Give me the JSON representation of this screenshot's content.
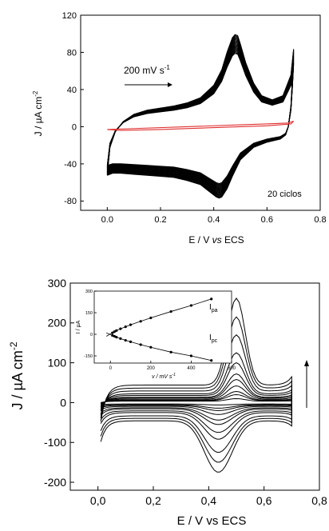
{
  "chart_data": [
    {
      "type": "line",
      "panel": "top",
      "xlabel_parts": [
        "E / V ",
        "vs",
        " ECS"
      ],
      "ylabel": "J / µA cm",
      "ylabel_sup": "-2",
      "xlim": [
        -0.1,
        0.8
      ],
      "ylim": [
        -90,
        120
      ],
      "xticks": [
        "0.0",
        "0.2",
        "0.4",
        "0.6",
        "0.8"
      ],
      "yticks": [
        "-80",
        "-40",
        "0",
        "40",
        "80",
        "120"
      ],
      "annotations": {
        "rate_text": "200 mV s",
        "rate_sup": "-1",
        "cycles_text": "20 ciclos"
      },
      "series": [
        {
          "color": "#000000",
          "cycles": 20,
          "forward": [
            [
              0.0,
              -47
            ],
            [
              0.01,
              -20
            ],
            [
              0.03,
              -5
            ],
            [
              0.06,
              5
            ],
            [
              0.1,
              12
            ],
            [
              0.15,
              16
            ],
            [
              0.2,
              18
            ],
            [
              0.25,
              20
            ],
            [
              0.3,
              23
            ],
            [
              0.35,
              28
            ],
            [
              0.4,
              40
            ],
            [
              0.43,
              55
            ],
            [
              0.45,
              72
            ],
            [
              0.47,
              86
            ],
            [
              0.48,
              89
            ],
            [
              0.49,
              88
            ],
            [
              0.5,
              80
            ],
            [
              0.52,
              62
            ],
            [
              0.55,
              42
            ],
            [
              0.58,
              30
            ],
            [
              0.62,
              26
            ],
            [
              0.66,
              30
            ],
            [
              0.69,
              50
            ],
            [
              0.7,
              75
            ]
          ],
          "reverse": [
            [
              0.7,
              75
            ],
            [
              0.695,
              45
            ],
            [
              0.69,
              20
            ],
            [
              0.68,
              0
            ],
            [
              0.67,
              -8
            ],
            [
              0.65,
              -12
            ],
            [
              0.6,
              -15
            ],
            [
              0.55,
              -20
            ],
            [
              0.5,
              -32
            ],
            [
              0.47,
              -48
            ],
            [
              0.45,
              -60
            ],
            [
              0.43,
              -68
            ],
            [
              0.42,
              -69
            ],
            [
              0.41,
              -68
            ],
            [
              0.38,
              -62
            ],
            [
              0.35,
              -56
            ],
            [
              0.3,
              -52
            ],
            [
              0.25,
              -49
            ],
            [
              0.2,
              -48
            ],
            [
              0.15,
              -47
            ],
            [
              0.1,
              -46
            ],
            [
              0.05,
              -45
            ],
            [
              0.02,
              -45
            ],
            [
              0.0,
              -47
            ]
          ]
        },
        {
          "color": "#e03030",
          "forward": [
            [
              0.0,
              -3
            ],
            [
              0.1,
              -2
            ],
            [
              0.3,
              0
            ],
            [
              0.5,
              2
            ],
            [
              0.6,
              3
            ],
            [
              0.68,
              4
            ],
            [
              0.7,
              6
            ]
          ],
          "reverse": [
            [
              0.7,
              6
            ],
            [
              0.69,
              3
            ],
            [
              0.6,
              1
            ],
            [
              0.4,
              -1
            ],
            [
              0.2,
              -3
            ],
            [
              0.05,
              -4
            ],
            [
              0.0,
              -3
            ]
          ]
        }
      ]
    },
    {
      "type": "line",
      "panel": "bottom",
      "xlabel": "E / V vs ECS",
      "ylabel": "J / µA cm",
      "ylabel_sup": "-2",
      "xlim": [
        -0.1,
        0.8
      ],
      "ylim": [
        -220,
        300
      ],
      "xticks": [
        "0,0",
        "0,2",
        "0,4",
        "0,6",
        "0,8"
      ],
      "yticks": [
        "-200",
        "-100",
        "0",
        "100",
        "200",
        "300"
      ],
      "scan_rates_mV_s": [
        10,
        20,
        30,
        50,
        75,
        100,
        150,
        200,
        300,
        400,
        500
      ],
      "peak_anodic": [
        10,
        20,
        28,
        42,
        58,
        72,
        100,
        125,
        170,
        215,
        262
      ],
      "peak_cathodic": [
        -6,
        -14,
        -20,
        -30,
        -44,
        -55,
        -75,
        -92,
        -125,
        -150,
        -175
      ],
      "inset": {
        "type": "scatter",
        "xlabel": "v / mV s",
        "xlabel_sup": "-1",
        "ylabel": "I / µA",
        "xlim": [
          -80,
          600
        ],
        "ylim": [
          -200,
          300
        ],
        "xticks": [
          "0",
          "200",
          "400",
          "600"
        ],
        "yticks": [
          "-150",
          "0",
          "150",
          "300"
        ],
        "series": [
          {
            "name": "I",
            "name_sub": "pa",
            "x": [
              10,
              20,
              30,
              50,
              75,
              100,
              150,
              200,
              300,
              400,
              500
            ],
            "y": [
              10,
              18,
              26,
              38,
              52,
              66,
              90,
              114,
              158,
              200,
              245
            ]
          },
          {
            "name": "I",
            "name_sub": "pc",
            "x": [
              10,
              20,
              30,
              50,
              75,
              100,
              150,
              200,
              300,
              400,
              500
            ],
            "y": [
              -8,
              -14,
              -20,
              -30,
              -42,
              -52,
              -72,
              -90,
              -124,
              -150,
              -182
            ]
          }
        ]
      }
    }
  ]
}
